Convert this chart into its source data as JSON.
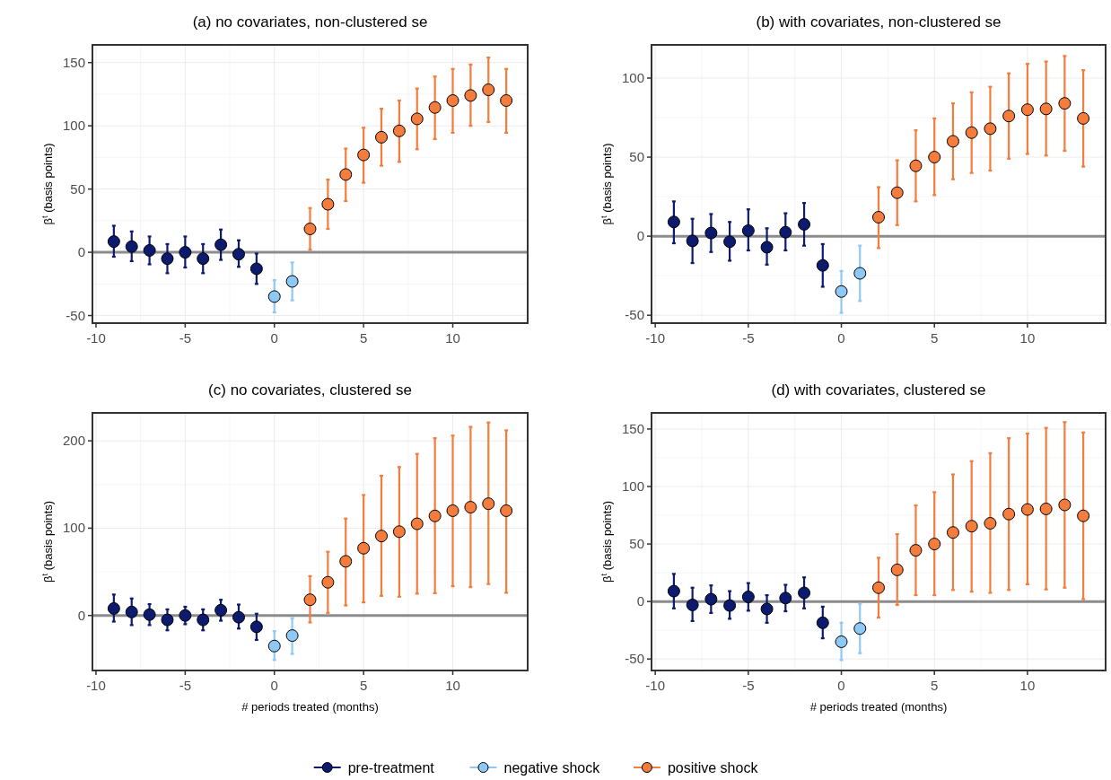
{
  "chart_data": [
    {
      "type": "scatter",
      "title": "(a) no covariates, non-clustered se",
      "ylabel": "β$^{t}$ (basis points)",
      "xlim": [
        -10.2,
        14.2
      ],
      "xticks": [
        -10,
        -5,
        0,
        5,
        10
      ],
      "ylim": [
        -56,
        164
      ],
      "yticks": [
        -50,
        0,
        50,
        100,
        150
      ],
      "grid": true,
      "marker": "circle",
      "ref_lines": [
        {
          "axis": "y",
          "value": 0,
          "color": "#8c8c8c"
        }
      ],
      "series": [
        {
          "color": "#0d1b6e",
          "x": [
            -9,
            -8,
            -7,
            -6,
            -5,
            -4,
            -3,
            -2,
            -1
          ],
          "values": [
            8.5,
            4.5,
            1.5,
            -5,
            0,
            -5,
            6,
            -1.5,
            -13
          ],
          "errors": [
            [
              -3.5,
              21
            ],
            [
              -7,
              16.5
            ],
            [
              -9.5,
              12.5
            ],
            [
              -16.5,
              6.5
            ],
            [
              -12,
              12.5
            ],
            [
              -16.5,
              6.5
            ],
            [
              -6,
              18
            ],
            [
              -11.5,
              9.5
            ],
            [
              -25,
              -1
            ]
          ]
        },
        {
          "color": "#8ec9f5",
          "x": [
            0,
            1
          ],
          "values": [
            -35,
            -23
          ],
          "errors": [
            [
              -47.5,
              -22
            ],
            [
              -38,
              -8
            ]
          ]
        },
        {
          "color": "#f47c3c",
          "x": [
            2,
            3,
            4,
            5,
            6,
            7,
            8,
            9,
            10,
            11,
            12,
            13
          ],
          "values": [
            18.5,
            38,
            61.5,
            77,
            91,
            96,
            105.5,
            114.5,
            120,
            124,
            128.5,
            120
          ],
          "errors": [
            [
              2,
              35
            ],
            [
              18.5,
              57.5
            ],
            [
              40.5,
              82
            ],
            [
              55,
              98.5
            ],
            [
              68.5,
              113.5
            ],
            [
              71.5,
              120
            ],
            [
              81.5,
              129.5
            ],
            [
              89.5,
              139
            ],
            [
              94.5,
              145
            ],
            [
              100,
              148.5
            ],
            [
              103,
              154
            ],
            [
              94.5,
              145
            ]
          ]
        }
      ]
    },
    {
      "type": "scatter",
      "title": "(b) with covariates, non-clustered se",
      "ylabel": "β$^{t}$ (basis points)",
      "xlim": [
        -10.2,
        14.2
      ],
      "xticks": [
        -10,
        -5,
        0,
        5,
        10
      ],
      "ylim": [
        -55,
        121
      ],
      "yticks": [
        -50,
        0,
        50,
        100
      ],
      "grid": true,
      "marker": "circle",
      "ref_lines": [
        {
          "axis": "y",
          "value": 0,
          "color": "#8c8c8c"
        }
      ],
      "series": [
        {
          "color": "#0d1b6e",
          "x": [
            -9,
            -8,
            -7,
            -6,
            -5,
            -4,
            -3,
            -2,
            -1
          ],
          "values": [
            9,
            -3,
            2,
            -3.5,
            3.5,
            -7,
            2.5,
            7.5,
            -18.5
          ],
          "errors": [
            [
              -4.5,
              22
            ],
            [
              -17,
              11
            ],
            [
              -10,
              14
            ],
            [
              -15.5,
              9
            ],
            [
              -9,
              17
            ],
            [
              -18,
              5
            ],
            [
              -9,
              14.5
            ],
            [
              -6,
              21
            ],
            [
              -32,
              -5
            ]
          ]
        },
        {
          "color": "#8ec9f5",
          "x": [
            0,
            1
          ],
          "values": [
            -35,
            -23.5
          ],
          "errors": [
            [
              -48.5,
              -22
            ],
            [
              -41,
              -6
            ]
          ]
        },
        {
          "color": "#f47c3c",
          "x": [
            2,
            3,
            4,
            5,
            6,
            7,
            8,
            9,
            10,
            11,
            12,
            13
          ],
          "values": [
            12,
            27.5,
            44.5,
            50,
            60,
            65.5,
            68,
            76,
            80,
            80.5,
            84,
            74.5
          ],
          "errors": [
            [
              -7.5,
              31
            ],
            [
              7,
              48
            ],
            [
              22,
              67
            ],
            [
              26,
              74.5
            ],
            [
              36,
              84
            ],
            [
              40,
              91
            ],
            [
              41.5,
              94.5
            ],
            [
              49,
              103
            ],
            [
              52,
              109
            ],
            [
              51,
              110.5
            ],
            [
              54,
              114
            ],
            [
              44,
              105
            ]
          ]
        }
      ]
    },
    {
      "type": "scatter",
      "title": "(c) no covariates, clustered se",
      "xlabel": "# periods treated (months)",
      "ylabel": "β$^{t}$ (basis points)",
      "xlim": [
        -10.2,
        14.2
      ],
      "xticks": [
        -10,
        -5,
        0,
        5,
        10
      ],
      "ylim": [
        -63,
        232
      ],
      "yticks": [
        0,
        100,
        200
      ],
      "grid": true,
      "marker": "circle",
      "ref_lines": [
        {
          "axis": "y",
          "value": 0,
          "color": "#8c8c8c"
        }
      ],
      "series": [
        {
          "color": "#0d1b6e",
          "x": [
            -9,
            -8,
            -7,
            -6,
            -5,
            -4,
            -3,
            -2,
            -1
          ],
          "values": [
            8,
            4,
            1,
            -5,
            0,
            -5,
            6,
            -2,
            -13
          ],
          "errors": [
            [
              -7,
              24
            ],
            [
              -11,
              19.5
            ],
            [
              -11,
              13
            ],
            [
              -17,
              7
            ],
            [
              -10,
              10
            ],
            [
              -17,
              7
            ],
            [
              -6,
              18
            ],
            [
              -15,
              12.5
            ],
            [
              -28,
              2
            ]
          ]
        },
        {
          "color": "#8ec9f5",
          "x": [
            0,
            1
          ],
          "values": [
            -35,
            -23
          ],
          "errors": [
            [
              -51,
              -18
            ],
            [
              -44,
              -3
            ]
          ]
        },
        {
          "color": "#f47c3c",
          "x": [
            2,
            3,
            4,
            5,
            6,
            7,
            8,
            9,
            10,
            11,
            12,
            13
          ],
          "values": [
            18,
            38,
            62,
            77,
            91,
            96,
            105,
            114,
            120,
            124,
            128,
            120
          ],
          "errors": [
            [
              -8,
              45
            ],
            [
              3,
              73
            ],
            [
              11.5,
              111
            ],
            [
              15,
              138
            ],
            [
              22.5,
              160
            ],
            [
              21.5,
              170
            ],
            [
              25,
              185
            ],
            [
              25.5,
              203
            ],
            [
              33.5,
              206
            ],
            [
              32.5,
              216
            ],
            [
              36,
              221
            ],
            [
              26,
              212
            ]
          ]
        }
      ]
    },
    {
      "type": "scatter",
      "title": "(d) with covariates, clustered se",
      "xlabel": "# periods treated (months)",
      "ylabel": "β$^{t}$ (basis points)",
      "xlim": [
        -10.2,
        14.2
      ],
      "xticks": [
        -10,
        -5,
        0,
        5,
        10
      ],
      "ylim": [
        -60,
        164
      ],
      "yticks": [
        -50,
        0,
        50,
        100,
        150
      ],
      "grid": true,
      "marker": "circle",
      "legend": "bottom",
      "ref_lines": [
        {
          "axis": "y",
          "value": 0,
          "color": "#8c8c8c"
        }
      ],
      "series": [
        {
          "name": "pre-treatment",
          "color": "#0d1b6e",
          "x": [
            -9,
            -8,
            -7,
            -6,
            -5,
            -4,
            -3,
            -2,
            -1
          ],
          "values": [
            9,
            -3,
            2,
            -3.5,
            4,
            -6.5,
            3,
            7.5,
            -18.5
          ],
          "errors": [
            [
              -6,
              24
            ],
            [
              -17,
              12
            ],
            [
              -10,
              14
            ],
            [
              -15,
              9
            ],
            [
              -8,
              16
            ],
            [
              -18.5,
              5.5
            ],
            [
              -8.5,
              14.5
            ],
            [
              -6,
              21
            ],
            [
              -32,
              -4.5
            ]
          ]
        },
        {
          "name": "negative shock",
          "color": "#8ec9f5",
          "x": [
            0,
            1
          ],
          "values": [
            -35,
            -23.5
          ],
          "errors": [
            [
              -51,
              -18.5
            ],
            [
              -45,
              -2
            ]
          ]
        },
        {
          "name": "positive shock",
          "color": "#f47c3c",
          "x": [
            2,
            3,
            4,
            5,
            6,
            7,
            8,
            9,
            10,
            11,
            12,
            13
          ],
          "values": [
            12,
            27.5,
            44.5,
            50,
            60,
            65.5,
            68,
            76,
            80,
            80.5,
            84,
            74.5
          ],
          "errors": [
            [
              -14,
              38
            ],
            [
              -3,
              58.5
            ],
            [
              5.5,
              83.5
            ],
            [
              5.5,
              95
            ],
            [
              10,
              110.5
            ],
            [
              8.5,
              122
            ],
            [
              7.5,
              129
            ],
            [
              10,
              142
            ],
            [
              15,
              146
            ],
            [
              10.5,
              151
            ],
            [
              12,
              156
            ],
            [
              2,
              147
            ]
          ]
        }
      ]
    }
  ]
}
